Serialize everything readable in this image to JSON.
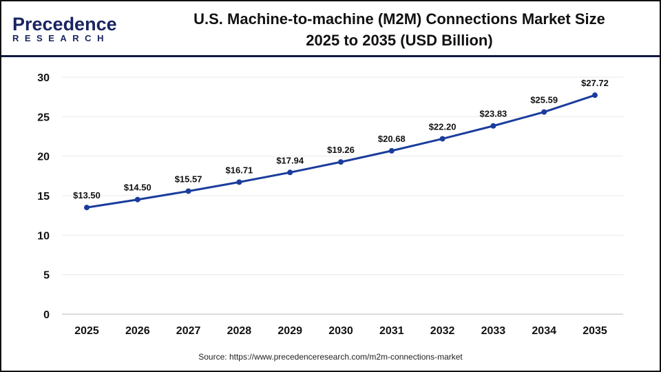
{
  "logo": {
    "line1": "Precedence",
    "line2": "RESEARCH"
  },
  "title": {
    "line1": "U.S. Machine-to-machine (M2M) Connections Market Size",
    "line2": "2025 to 2035 (USD Billion)"
  },
  "source": "Source: https://www.precedenceresearch.com/m2m-connections-market",
  "colors": {
    "line": "#1a3c9c",
    "brand": "#1a2560",
    "grid": "#e8e8e8"
  },
  "chart_data": {
    "type": "line",
    "categories": [
      "2025",
      "2026",
      "2027",
      "2028",
      "2029",
      "2030",
      "2031",
      "2032",
      "2033",
      "2034",
      "2035"
    ],
    "values": [
      13.5,
      14.5,
      15.57,
      16.71,
      17.94,
      19.26,
      20.68,
      22.2,
      23.83,
      25.59,
      27.72
    ],
    "labels": [
      "$13.50",
      "$14.50",
      "$15.57",
      "$16.71",
      "$17.94",
      "$19.26",
      "$20.68",
      "$22.20",
      "$23.83",
      "$25.59",
      "$27.72"
    ],
    "yticks": [
      "0",
      "5",
      "10",
      "15",
      "20",
      "25",
      "30"
    ],
    "ylim": [
      0,
      30
    ],
    "grid": true,
    "xlabel": "",
    "ylabel": ""
  }
}
